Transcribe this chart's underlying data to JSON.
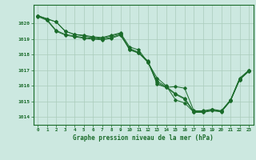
{
  "title": "Graphe pression niveau de la mer (hPa)",
  "xlabel_hours": [
    0,
    1,
    2,
    3,
    4,
    5,
    6,
    7,
    8,
    9,
    10,
    11,
    12,
    13,
    14,
    15,
    16,
    17,
    18,
    19,
    20,
    21,
    22,
    23
  ],
  "ylim": [
    1013.5,
    1021.2
  ],
  "yticks": [
    1014,
    1015,
    1016,
    1017,
    1018,
    1019,
    1020
  ],
  "bg_color": "#cce8e0",
  "grid_color": "#aaccbb",
  "line_color": "#1a6b2a",
  "series": [
    [
      1020.5,
      1020.3,
      1020.1,
      1019.5,
      1019.3,
      1019.2,
      1019.1,
      1019.05,
      1019.2,
      1019.35,
      1018.3,
      1018.1,
      1017.6,
      1016.1,
      1015.9,
      1015.95,
      1015.85,
      1014.4,
      1014.4,
      1014.5,
      1014.4,
      1015.1,
      1016.5,
      1017.0
    ],
    [
      1020.5,
      1020.3,
      1020.1,
      1019.5,
      1019.3,
      1019.25,
      1019.15,
      1019.1,
      1019.25,
      1019.4,
      1018.5,
      1018.3,
      1017.5,
      1016.5,
      1016.0,
      1015.1,
      1014.9,
      1014.3,
      1014.3,
      1014.45,
      1014.35,
      1015.05,
      1016.4,
      1016.95
    ],
    [
      1020.5,
      1020.25,
      1019.55,
      1019.3,
      1019.2,
      1019.1,
      1019.05,
      1019.0,
      1019.1,
      1019.3,
      1018.4,
      1018.15,
      1017.55,
      1016.3,
      1015.95,
      1015.5,
      1015.2,
      1014.35,
      1014.35,
      1014.45,
      1014.38,
      1015.08,
      1016.45,
      1016.98
    ],
    [
      1020.45,
      1020.2,
      1019.5,
      1019.25,
      1019.15,
      1019.05,
      1019.0,
      1018.95,
      1019.05,
      1019.25,
      1018.35,
      1018.1,
      1017.5,
      1016.2,
      1015.9,
      1015.45,
      1015.15,
      1014.3,
      1014.3,
      1014.4,
      1014.33,
      1015.03,
      1016.4,
      1016.93
    ]
  ]
}
